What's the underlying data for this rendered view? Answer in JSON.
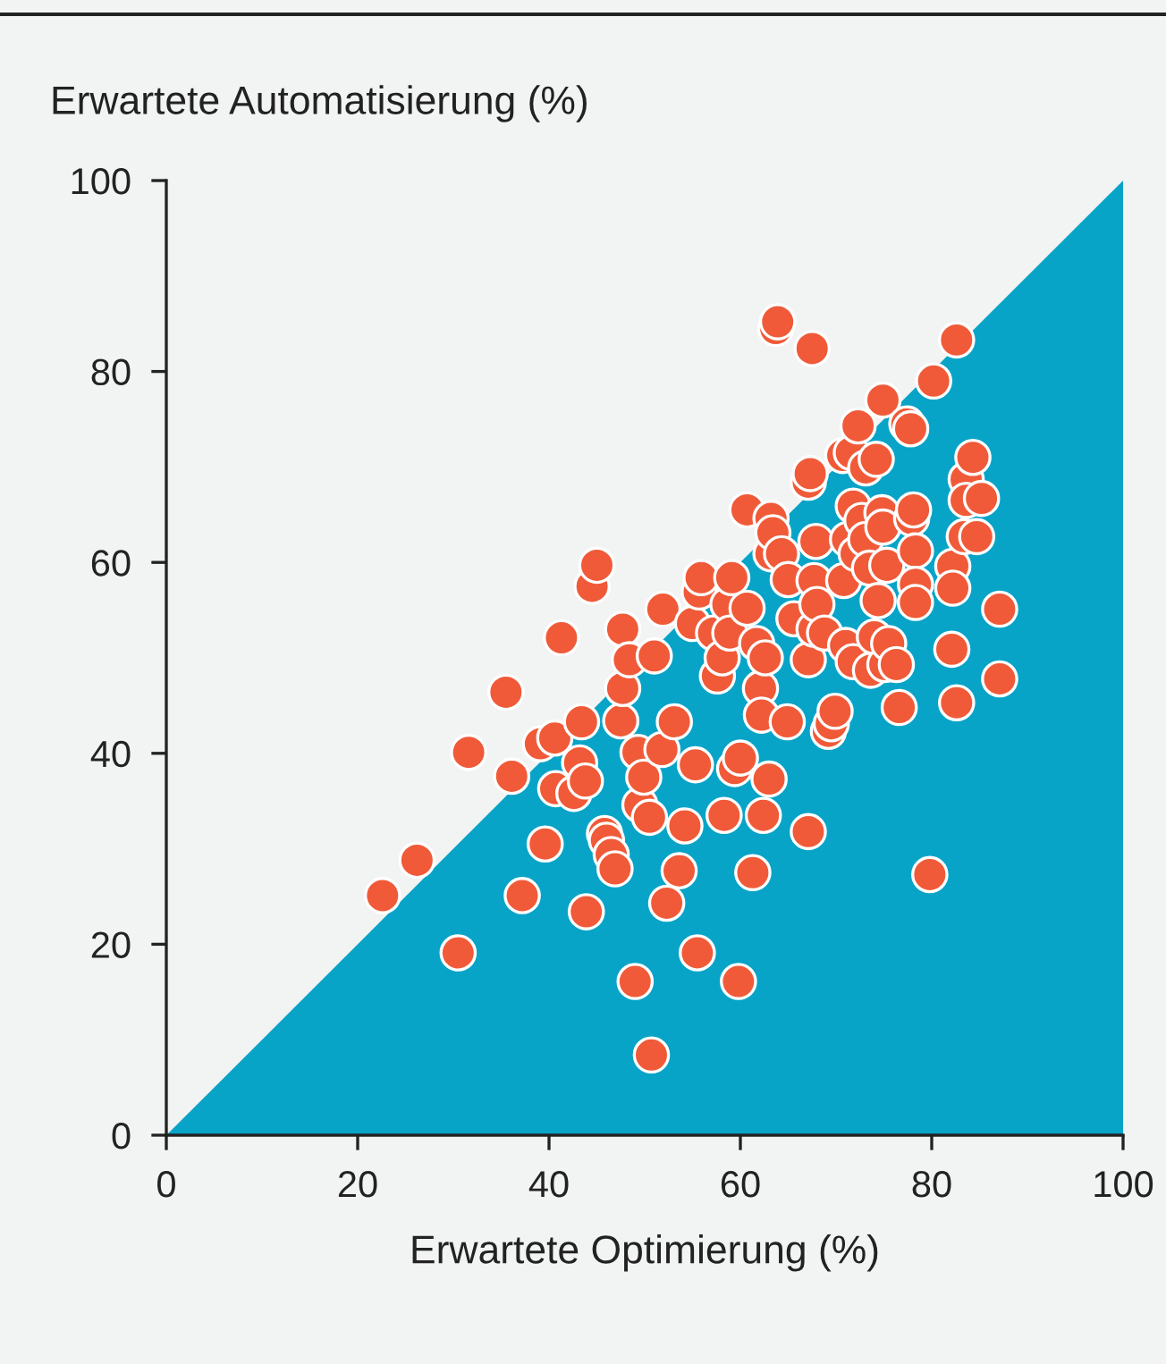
{
  "chart_data": {
    "type": "scatter",
    "xlabel": "Erwartete Optimierung (%)",
    "ylabel": "Erwartete Automatisierung (%)",
    "xlim": [
      0,
      100
    ],
    "ylim": [
      0,
      100
    ],
    "xticks": [
      0,
      20,
      40,
      60,
      80,
      100
    ],
    "yticks": [
      0,
      20,
      40,
      60,
      80,
      100
    ],
    "grid": false,
    "legend": false,
    "series": [
      {
        "type": "area",
        "color": "#08a4c8",
        "x": [
          0,
          100
        ],
        "values": [
          0,
          100
        ]
      },
      {
        "marker": "circle",
        "color": "#f05a38",
        "x": [
          22.6,
          26.2,
          30.5,
          31.6,
          35.5,
          36.1,
          37.2,
          39.1,
          39.6,
          40.6,
          40.7,
          41.3,
          42.6,
          43.2,
          43.4,
          43.8,
          43.9,
          44.5,
          45.0,
          45.8,
          46.0,
          46.5,
          46.9,
          47.5,
          47.7,
          47.7,
          48.4,
          49.0,
          49.3,
          49.5,
          49.9,
          50.5,
          50.7,
          51.0,
          51.8,
          51.9,
          52.3,
          53.1,
          53.6,
          54.2,
          55.0,
          55.3,
          55.5,
          55.7,
          55.9,
          57.2,
          57.6,
          58.1,
          58.3,
          58.7,
          58.9,
          59.1,
          59.4,
          59.8,
          60.0,
          60.7,
          60.7,
          61.3,
          61.7,
          62.1,
          62.2,
          62.4,
          62.6,
          63.0,
          63.2,
          63.2,
          63.4,
          63.7,
          63.9,
          64.3,
          64.9,
          65.0,
          65.6,
          67.1,
          67.1,
          67.1,
          67.3,
          67.5,
          67.7,
          67.7,
          67.9,
          68.0,
          68.8,
          69.2,
          69.5,
          69.9,
          70.7,
          70.8,
          71.0,
          71.2,
          71.6,
          71.8,
          71.8,
          72.1,
          72.3,
          72.7,
          73.1,
          73.1,
          73.5,
          73.6,
          74.0,
          74.2,
          74.4,
          74.8,
          74.9,
          74.9,
          75.1,
          75.3,
          75.5,
          76.3,
          76.6,
          77.4,
          77.8,
          77.9,
          78.1,
          78.3,
          78.3,
          78.3,
          79.8,
          80.2,
          82.1,
          82.2,
          82.2,
          82.6,
          82.6,
          83.4,
          83.6,
          83.6,
          84.3,
          84.7,
          85.2,
          87.1,
          87.1
        ],
        "values": [
          25.1,
          28.8,
          19.1,
          40.1,
          46.4,
          37.6,
          25.1,
          41.0,
          30.5,
          41.6,
          36.3,
          52.1,
          35.8,
          39.0,
          43.3,
          37.1,
          23.4,
          57.5,
          59.7,
          31.6,
          30.9,
          29.4,
          27.9,
          43.4,
          46.8,
          53.0,
          49.8,
          16.1,
          40.1,
          34.6,
          37.5,
          33.3,
          8.4,
          50.2,
          40.4,
          55.1,
          24.3,
          43.3,
          27.7,
          32.4,
          53.6,
          38.8,
          19.1,
          56.9,
          58.4,
          52.6,
          48.1,
          50.0,
          33.5,
          55.6,
          52.6,
          58.4,
          38.4,
          16.1,
          39.5,
          65.5,
          55.2,
          27.5,
          51.5,
          46.8,
          44.0,
          33.5,
          50.0,
          37.3,
          60.9,
          64.6,
          63.1,
          84.5,
          85.2,
          60.9,
          43.3,
          58.2,
          54.1,
          31.8,
          49.8,
          68.4,
          69.3,
          82.4,
          53.0,
          58.1,
          62.2,
          55.6,
          52.6,
          42.3,
          43.1,
          44.4,
          71.2,
          58.1,
          51.3,
          62.4,
          71.5,
          65.9,
          49.6,
          60.9,
          74.3,
          64.4,
          69.9,
          62.4,
          59.4,
          48.7,
          52.2,
          70.8,
          56.0,
          65.2,
          63.7,
          77.0,
          49.3,
          59.7,
          51.5,
          49.3,
          44.8,
          74.5,
          74.0,
          64.6,
          65.5,
          61.2,
          57.7,
          55.8,
          27.3,
          79.0,
          50.9,
          59.6,
          57.3,
          83.3,
          45.3,
          62.7,
          68.7,
          66.5,
          71.0,
          62.7,
          66.7,
          55.1,
          47.8
        ]
      }
    ]
  }
}
